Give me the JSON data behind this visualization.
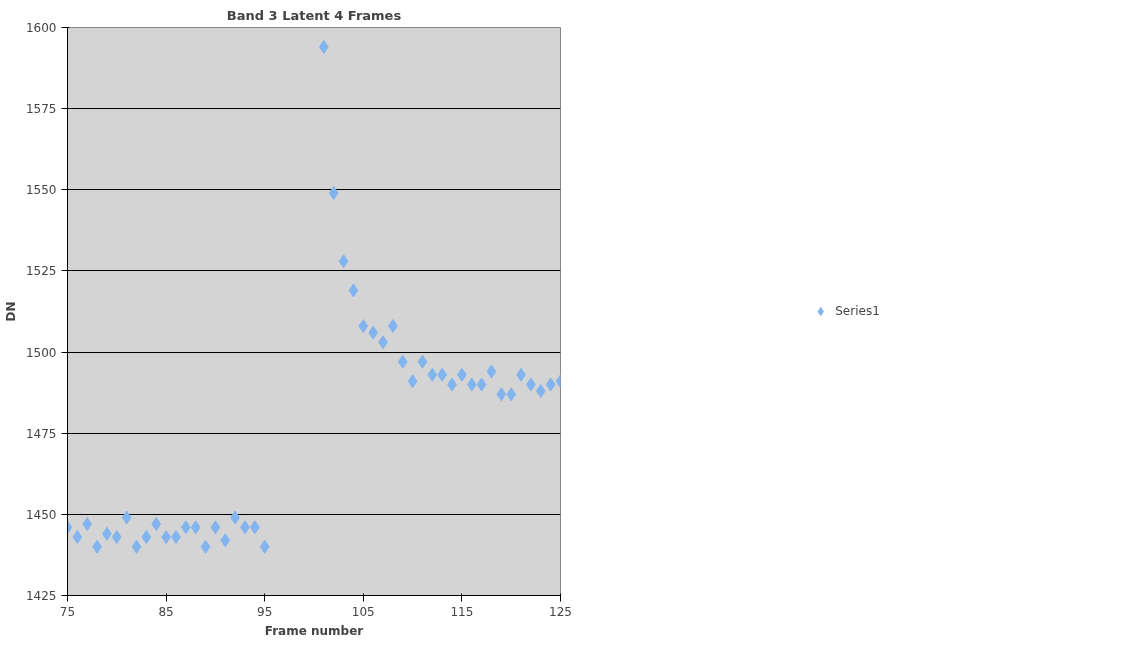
{
  "chart_data": {
    "type": "scatter",
    "title": "Band 3 Latent 4 Frames",
    "xlabel": "Frame number",
    "ylabel": "DN",
    "xlim": [
      75,
      125
    ],
    "xticks": [
      75,
      85,
      95,
      105,
      115,
      125
    ],
    "ylim": [
      1425,
      1600
    ],
    "yticks": [
      1425,
      1450,
      1475,
      1500,
      1525,
      1550,
      1575,
      1600
    ],
    "grid": "y",
    "legend": "right",
    "marker": "diamond",
    "series": [
      {
        "name": "Series1",
        "color": "#82b4f0",
        "x": [
          75,
          76,
          77,
          78,
          79,
          80,
          81,
          82,
          83,
          84,
          85,
          86,
          87,
          88,
          89,
          90,
          91,
          92,
          93,
          94,
          95,
          101,
          102,
          103,
          104,
          105,
          106,
          107,
          108,
          109,
          110,
          111,
          112,
          113,
          114,
          115,
          116,
          117,
          118,
          119,
          120,
          121,
          122,
          123,
          124,
          125
        ],
        "values": [
          1446,
          1443,
          1447,
          1440,
          1444,
          1443,
          1449,
          1440,
          1443,
          1447,
          1443,
          1443,
          1446,
          1446,
          1440,
          1446,
          1442,
          1449,
          1446,
          1446,
          1440,
          1594,
          1549,
          1528,
          1519,
          1508,
          1506,
          1503,
          1508,
          1497,
          1491,
          1497,
          1493,
          1493,
          1490,
          1493,
          1490,
          1490,
          1494,
          1487,
          1487,
          1493,
          1490,
          1488,
          1490,
          1491
        ]
      }
    ]
  }
}
